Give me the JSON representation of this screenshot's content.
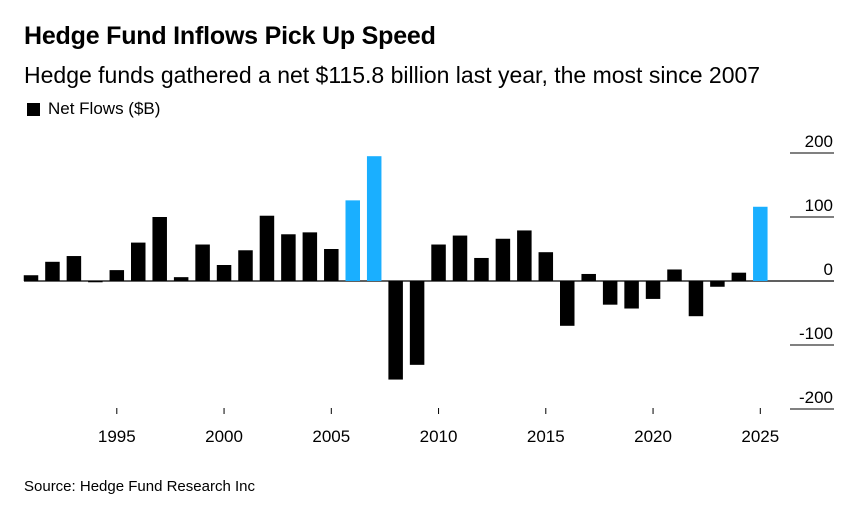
{
  "header": {
    "title": "Hedge Fund Inflows Pick Up Speed",
    "subtitle": "Hedge funds gathered a net $115.8 billion last year, the most since 2007"
  },
  "legend": {
    "label": "Net Flows ($B)"
  },
  "source": "Source: Hedge Fund Research Inc",
  "colors": {
    "default_bar": "#000000",
    "highlight_bar": "#1aafff",
    "gridline": "#000000"
  },
  "chart_data": {
    "type": "bar",
    "title": "Hedge Fund Inflows Pick Up Speed",
    "ylabel": "Net Flows ($B)",
    "xlabel": "",
    "ylim": [
      -200,
      200
    ],
    "yticks": [
      200,
      100,
      0,
      -100,
      -200
    ],
    "ytick_labels": [
      "200",
      "100",
      "0",
      "-100",
      "-200"
    ],
    "xticks": [
      1995,
      2000,
      2005,
      2010,
      2015,
      2020,
      2025
    ],
    "xtick_labels": [
      "1995",
      "2000",
      "2005",
      "2010",
      "2015",
      "2020",
      "2025"
    ],
    "highlight_years": [
      2006,
      2007,
      2025
    ],
    "categories": [
      1991,
      1992,
      1993,
      1994,
      1995,
      1996,
      1997,
      1998,
      1999,
      2000,
      2001,
      2002,
      2003,
      2004,
      2005,
      2006,
      2007,
      2008,
      2009,
      2010,
      2011,
      2012,
      2013,
      2014,
      2015,
      2016,
      2017,
      2018,
      2019,
      2020,
      2021,
      2022,
      2023,
      2024,
      2025
    ],
    "values": [
      9,
      30,
      39,
      -2,
      17,
      60,
      100,
      6,
      57,
      25,
      48,
      102,
      73,
      76,
      50,
      126,
      195,
      -154,
      -131,
      57,
      71,
      36,
      66,
      79,
      45,
      -70,
      11,
      -37,
      -43,
      -28,
      18,
      -55,
      -9,
      13,
      116
    ]
  }
}
